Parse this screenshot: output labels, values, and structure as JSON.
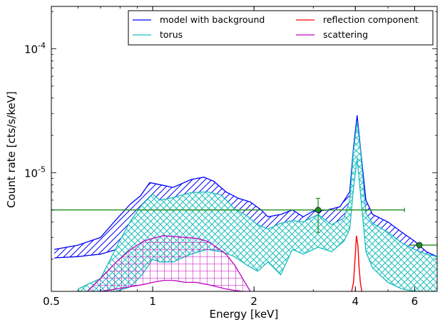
{
  "chart_data": {
    "type": "line",
    "xlabel": "Energy [keV]",
    "ylabel": "Count rate [cts/s/keV]",
    "x_scale": "log",
    "y_scale": "log",
    "xlim": [
      0.5,
      7.0
    ],
    "ylim": [
      1.1e-06,
      0.00022
    ],
    "x_ticks": [
      {
        "value": 0.5,
        "label": "0.5"
      },
      {
        "value": 1,
        "label": "1"
      },
      {
        "value": 2,
        "label": "2"
      },
      {
        "value": 4,
        "label": "4"
      },
      {
        "value": 6,
        "label": "6"
      }
    ],
    "y_ticks": [
      {
        "value": 1e-05,
        "base": "10",
        "exp": "-5"
      },
      {
        "value": 0.0001,
        "base": "10",
        "exp": "-4"
      }
    ],
    "grid": false,
    "legend_position": "top-right",
    "colors": {
      "model": "#0000ff",
      "torus": "#1cbdbd",
      "reflection": "#ff0000",
      "scattering": "#c000c0",
      "data": "#228b22"
    },
    "series": [
      {
        "name": "model with background",
        "style": "band-hatched",
        "x": [
          0.51,
          0.6,
          0.7,
          0.78,
          0.86,
          0.92,
          0.98,
          1.05,
          1.15,
          1.3,
          1.42,
          1.52,
          1.65,
          1.8,
          1.95,
          2.1,
          2.2,
          2.4,
          2.6,
          2.8,
          3.0,
          3.3,
          3.6,
          3.85,
          3.95,
          4.05,
          4.15,
          4.3,
          4.5,
          5.0,
          5.5,
          6.0,
          6.5,
          7.0
        ],
        "upper": [
          2.4e-06,
          2.6e-06,
          3e-06,
          4.2e-06,
          5.6e-06,
          6.5e-06,
          8.3e-06,
          8e-06,
          7.6e-06,
          8.8e-06,
          9.2e-06,
          8.5e-06,
          7e-06,
          6.2e-06,
          5.8e-06,
          5e-06,
          4.4e-06,
          4.6e-06,
          5e-06,
          4.4e-06,
          4.9e-06,
          5e-06,
          5.3e-06,
          7e-06,
          1.6e-05,
          2.9e-05,
          1.5e-05,
          6e-06,
          4.6e-06,
          4e-06,
          3.3e-06,
          2.8e-06,
          2.3e-06,
          2.1e-06
        ],
        "lower": [
          2.05e-06,
          2.1e-06,
          2.2e-06,
          2.4e-06,
          2.6e-06,
          2.9e-06,
          3.6e-06,
          3.4e-06,
          3.3e-06,
          3.8e-06,
          4e-06,
          3.7e-06,
          3.4e-06,
          3.2e-06,
          3.3e-06,
          3.2e-06,
          3e-06,
          3.1e-06,
          3.4e-06,
          3.2e-06,
          3.5e-06,
          3.4e-06,
          3.6e-06,
          4.4e-06,
          9e-06,
          1.75e-05,
          8.5e-06,
          3.6e-06,
          3e-06,
          2.6e-06,
          2.2e-06,
          2e-06,
          1.8e-06,
          1.7e-06
        ]
      },
      {
        "name": "torus",
        "style": "band-crosshatched",
        "x": [
          0.6,
          0.7,
          0.78,
          0.86,
          0.93,
          1.0,
          1.05,
          1.15,
          1.3,
          1.45,
          1.6,
          1.75,
          1.9,
          2.05,
          2.2,
          2.4,
          2.6,
          2.8,
          3.1,
          3.4,
          3.7,
          3.85,
          3.95,
          4.05,
          4.15,
          4.3,
          4.5,
          5.0,
          5.5,
          6.0,
          6.5,
          7.0
        ],
        "upper": [
          1.15e-06,
          1.4e-06,
          2.5e-06,
          4.1e-06,
          5.5e-06,
          6.7e-06,
          6e-06,
          6.3e-06,
          6.9e-06,
          7e-06,
          6.6e-06,
          5.1e-06,
          4.5e-06,
          3.8e-06,
          3.5e-06,
          3.9e-06,
          4.1e-06,
          4e-06,
          4.6e-06,
          3.8e-06,
          4.3e-06,
          6e-06,
          1.5e-05,
          2.6e-05,
          1.45e-05,
          4.7e-06,
          3.9e-06,
          3.3e-06,
          2.7e-06,
          2.4e-06,
          2.2e-06,
          2.1e-06
        ],
        "lower": [
          1.1e-06,
          1.1e-06,
          1.1e-06,
          1.2e-06,
          1.5e-06,
          2e-06,
          1.9e-06,
          1.9e-06,
          2.2e-06,
          2.4e-06,
          2.3e-06,
          2.1e-06,
          1.8e-06,
          1.6e-06,
          1.9e-06,
          1.5e-06,
          2.4e-06,
          2.2e-06,
          2.5e-06,
          2.3e-06,
          2.8e-06,
          3.5e-06,
          7.5e-06,
          1.3e-05,
          6.5e-06,
          2.3e-06,
          1.7e-06,
          1.3e-06,
          1.15e-06,
          1.1e-06,
          1.1e-06,
          1.1e-06
        ]
      },
      {
        "name": "reflection component",
        "style": "line",
        "x": [
          3.9,
          3.95,
          4.0,
          4.03,
          4.07,
          4.1,
          4.14,
          4.18
        ],
        "y": [
          1.1e-06,
          1.3e-06,
          2.2e-06,
          3.1e-06,
          2.6e-06,
          1.8e-06,
          1.3e-06,
          1.1e-06
        ]
      },
      {
        "name": "scattering",
        "style": "band-gridhatched",
        "x": [
          0.64,
          0.7,
          0.78,
          0.86,
          0.94,
          1.0,
          1.08,
          1.15,
          1.25,
          1.35,
          1.45,
          1.55,
          1.65,
          1.75,
          1.85,
          1.95
        ],
        "upper": [
          1.1e-06,
          1.4e-06,
          1.9e-06,
          2.4e-06,
          2.8e-06,
          2.95e-06,
          3.1e-06,
          3.05e-06,
          3e-06,
          2.95e-06,
          2.8e-06,
          2.5e-06,
          2.2e-06,
          1.8e-06,
          1.4e-06,
          1.1e-06
        ],
        "lower": [
          1.1e-06,
          1.1e-06,
          1.15e-06,
          1.2e-06,
          1.25e-06,
          1.3e-06,
          1.35e-06,
          1.35e-06,
          1.3e-06,
          1.3e-06,
          1.25e-06,
          1.2e-06,
          1.15e-06,
          1.12e-06,
          1.1e-06,
          1.1e-06
        ]
      },
      {
        "name": "data",
        "style": "errorbar",
        "points": [
          {
            "x": 3.1,
            "y": 5e-06,
            "xlo": 0.5,
            "xhi": 5.6,
            "ylo": 3.3e-06,
            "yhi": 6.2e-06
          },
          {
            "x": 6.2,
            "y": 2.6e-06,
            "xlo": 5.8,
            "xhi": 7.0,
            "ylo": 2.6e-06,
            "yhi": 2.6e-06
          }
        ]
      }
    ]
  }
}
